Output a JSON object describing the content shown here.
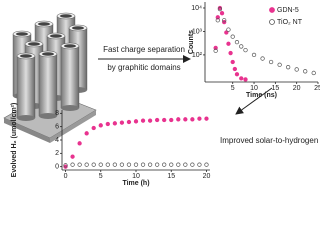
{
  "chart_data": [
    {
      "type": "scatter",
      "log_y": true,
      "ylabel": "Counts",
      "xlabel": "Time (ns)",
      "xlim": [
        -1.5,
        25
      ],
      "xticks": [
        5,
        10,
        15,
        20,
        25
      ],
      "ylim": [
        7,
        18000
      ],
      "yticks": [
        {
          "value": 100,
          "label": "10²"
        },
        {
          "value": 1000,
          "label": "10³"
        },
        {
          "value": 10000,
          "label": "10⁴"
        }
      ],
      "legend": "upper right",
      "series": [
        {
          "name": "GDN-5",
          "color": "#e8338f",
          "filled": true,
          "x": [
            1,
            1.5,
            2,
            2.5,
            3,
            3.5,
            4,
            4.5,
            5,
            5.5,
            6,
            7,
            8
          ],
          "values": [
            200,
            4000,
            10000,
            6000,
            2500,
            900,
            300,
            120,
            50,
            25,
            15,
            10,
            9
          ]
        },
        {
          "name": "TiO₂ NT",
          "color": "#555555",
          "filled": false,
          "x": [
            1,
            1.5,
            2,
            3,
            4,
            5,
            6,
            7,
            8,
            10,
            12,
            14,
            16,
            18,
            20,
            22,
            24
          ],
          "values": [
            150,
            3000,
            9000,
            3000,
            1200,
            600,
            350,
            230,
            160,
            100,
            70,
            50,
            38,
            30,
            24,
            20,
            17
          ]
        }
      ]
    },
    {
      "type": "scatter",
      "log_y": false,
      "ylabel": "Evolved H₂ (umol/cm²)",
      "xlabel": "Time (h)",
      "xlim": [
        -0.5,
        20.5
      ],
      "xticks": [
        0,
        5,
        10,
        15,
        20
      ],
      "ylim": [
        -0.5,
        8.5
      ],
      "yticks": [
        0,
        2,
        4,
        6,
        8
      ],
      "series": [
        {
          "name": "GDN-5",
          "color": "#e8338f",
          "filled": true,
          "x": [
            0,
            1,
            2,
            3,
            4,
            5,
            6,
            7,
            8,
            9,
            10,
            11,
            12,
            13,
            14,
            15,
            16,
            17,
            18,
            19,
            20
          ],
          "values": [
            0,
            1.5,
            3.5,
            5,
            5.8,
            6.2,
            6.4,
            6.5,
            6.6,
            6.7,
            6.8,
            6.9,
            6.9,
            7,
            7,
            7,
            7.1,
            7.1,
            7.1,
            7.2,
            7.2
          ]
        },
        {
          "name": "TiO₂ NT",
          "color": "#555555",
          "filled": false,
          "x": [
            0,
            1,
            2,
            3,
            4,
            5,
            6,
            7,
            8,
            9,
            10,
            11,
            12,
            13,
            14,
            15,
            16,
            17,
            18,
            19,
            20
          ],
          "values": [
            0.2,
            0.3,
            0.3,
            0.3,
            0.3,
            0.3,
            0.3,
            0.3,
            0.3,
            0.3,
            0.3,
            0.3,
            0.3,
            0.3,
            0.3,
            0.3,
            0.3,
            0.3,
            0.3,
            0.3,
            0.3
          ]
        }
      ]
    }
  ],
  "arrow_labels": {
    "charge_separation": [
      "Fast charge separation",
      "by graphitic domains"
    ],
    "rate": "Improved solar-to-hydrogen converion rate"
  }
}
